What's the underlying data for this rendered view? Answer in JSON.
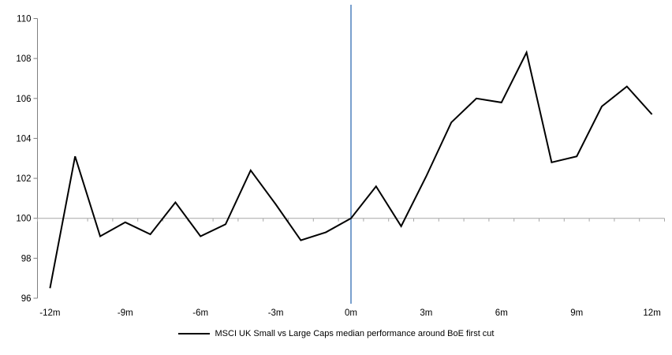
{
  "chart_data": {
    "type": "line",
    "title": "",
    "x": [
      -12,
      -11,
      -10,
      -9,
      -8,
      -7,
      -6,
      -5,
      -4,
      -3,
      -2,
      -1,
      0,
      1,
      2,
      3,
      4,
      5,
      6,
      7,
      8,
      9,
      10,
      11,
      12
    ],
    "series": [
      {
        "name": "MSCI UK Small vs Large Caps median performance around BoE first cut",
        "color": "#000000",
        "values": [
          96.5,
          103.1,
          99.1,
          99.8,
          99.2,
          100.8,
          99.1,
          99.7,
          102.4,
          100.7,
          98.9,
          99.3,
          100.0,
          101.6,
          99.6,
          102.1,
          104.8,
          106.0,
          105.8,
          108.3,
          102.8,
          103.1,
          105.6,
          106.6,
          105.2
        ]
      }
    ],
    "x_axis": {
      "unit": "months relative to first cut",
      "ticks": [
        -12,
        -9,
        -6,
        -3,
        0,
        3,
        6,
        9,
        12
      ],
      "tick_labels": [
        "-12m",
        "-9m",
        "-6m",
        "-3m",
        "0m",
        "3m",
        "6m",
        "9m",
        "12m"
      ],
      "crosses_at": 100,
      "color": "#a6a6a6"
    },
    "y_axis": {
      "ticks": [
        96,
        98,
        100,
        102,
        104,
        106,
        108,
        110
      ],
      "range": [
        96,
        110
      ],
      "color": "#808080"
    },
    "event_line": {
      "x": 0,
      "label": "BoE first cut (0m)",
      "color": "#4f81bd"
    },
    "baseline_value": 100,
    "grid": "off",
    "legend": {
      "position": "bottom",
      "label": "MSCI UK Small vs Large Caps median performance around BoE first cut"
    },
    "colors": {
      "series_line": "#000000",
      "text": "#000000",
      "background": "#ffffff"
    }
  }
}
